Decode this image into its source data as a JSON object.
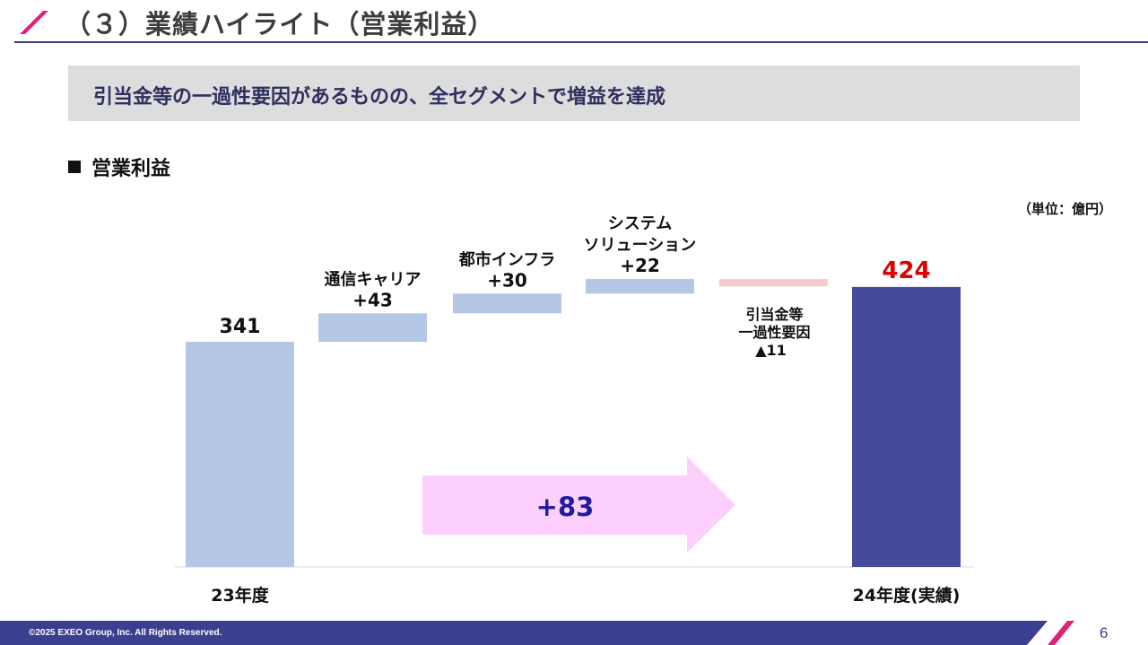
{
  "header": {
    "title": "（３）業績ハイライト（営業利益）"
  },
  "banner": {
    "text": "引当金等の一過性要因があるものの、全セグメントで増益を達成"
  },
  "section": {
    "title": "営業利益"
  },
  "unit_label": "（単位：億円）",
  "colors": {
    "positive": "#b4c7e7",
    "negative": "#f8cbcb",
    "total_end": "#454a9a",
    "arrow": "#fdcffc",
    "accent_red": "#e00000",
    "arrow_text": "#1c1ca0",
    "navy": "#3b3f8f"
  },
  "chart_data": {
    "type": "bar",
    "subtype": "waterfall",
    "unit": "億円",
    "steps": [
      {
        "label": "23年度",
        "value": 341,
        "kind": "total",
        "value_label": "341"
      },
      {
        "label": "通信キャリア",
        "value": 43,
        "kind": "delta",
        "value_label": "+43"
      },
      {
        "label": "都市インフラ",
        "value": 30,
        "kind": "delta",
        "value_label": "+30"
      },
      {
        "label": "システムソリューション",
        "label_lines": [
          "システム",
          "ソリューション"
        ],
        "value": 22,
        "kind": "delta",
        "value_label": "+22"
      },
      {
        "label": "引当金等一過性要因",
        "label_lines": [
          "引当金等",
          "一過性要因"
        ],
        "value": -11,
        "kind": "delta",
        "value_label": "▲11"
      },
      {
        "label": "24年度(実績)",
        "value": 424,
        "kind": "total",
        "value_label": "424"
      }
    ],
    "change": {
      "value": 83,
      "label": "+83"
    }
  },
  "footer": {
    "copyright": "©2025 EXEO Group, Inc. All Rights Reserved.",
    "page": "6"
  }
}
